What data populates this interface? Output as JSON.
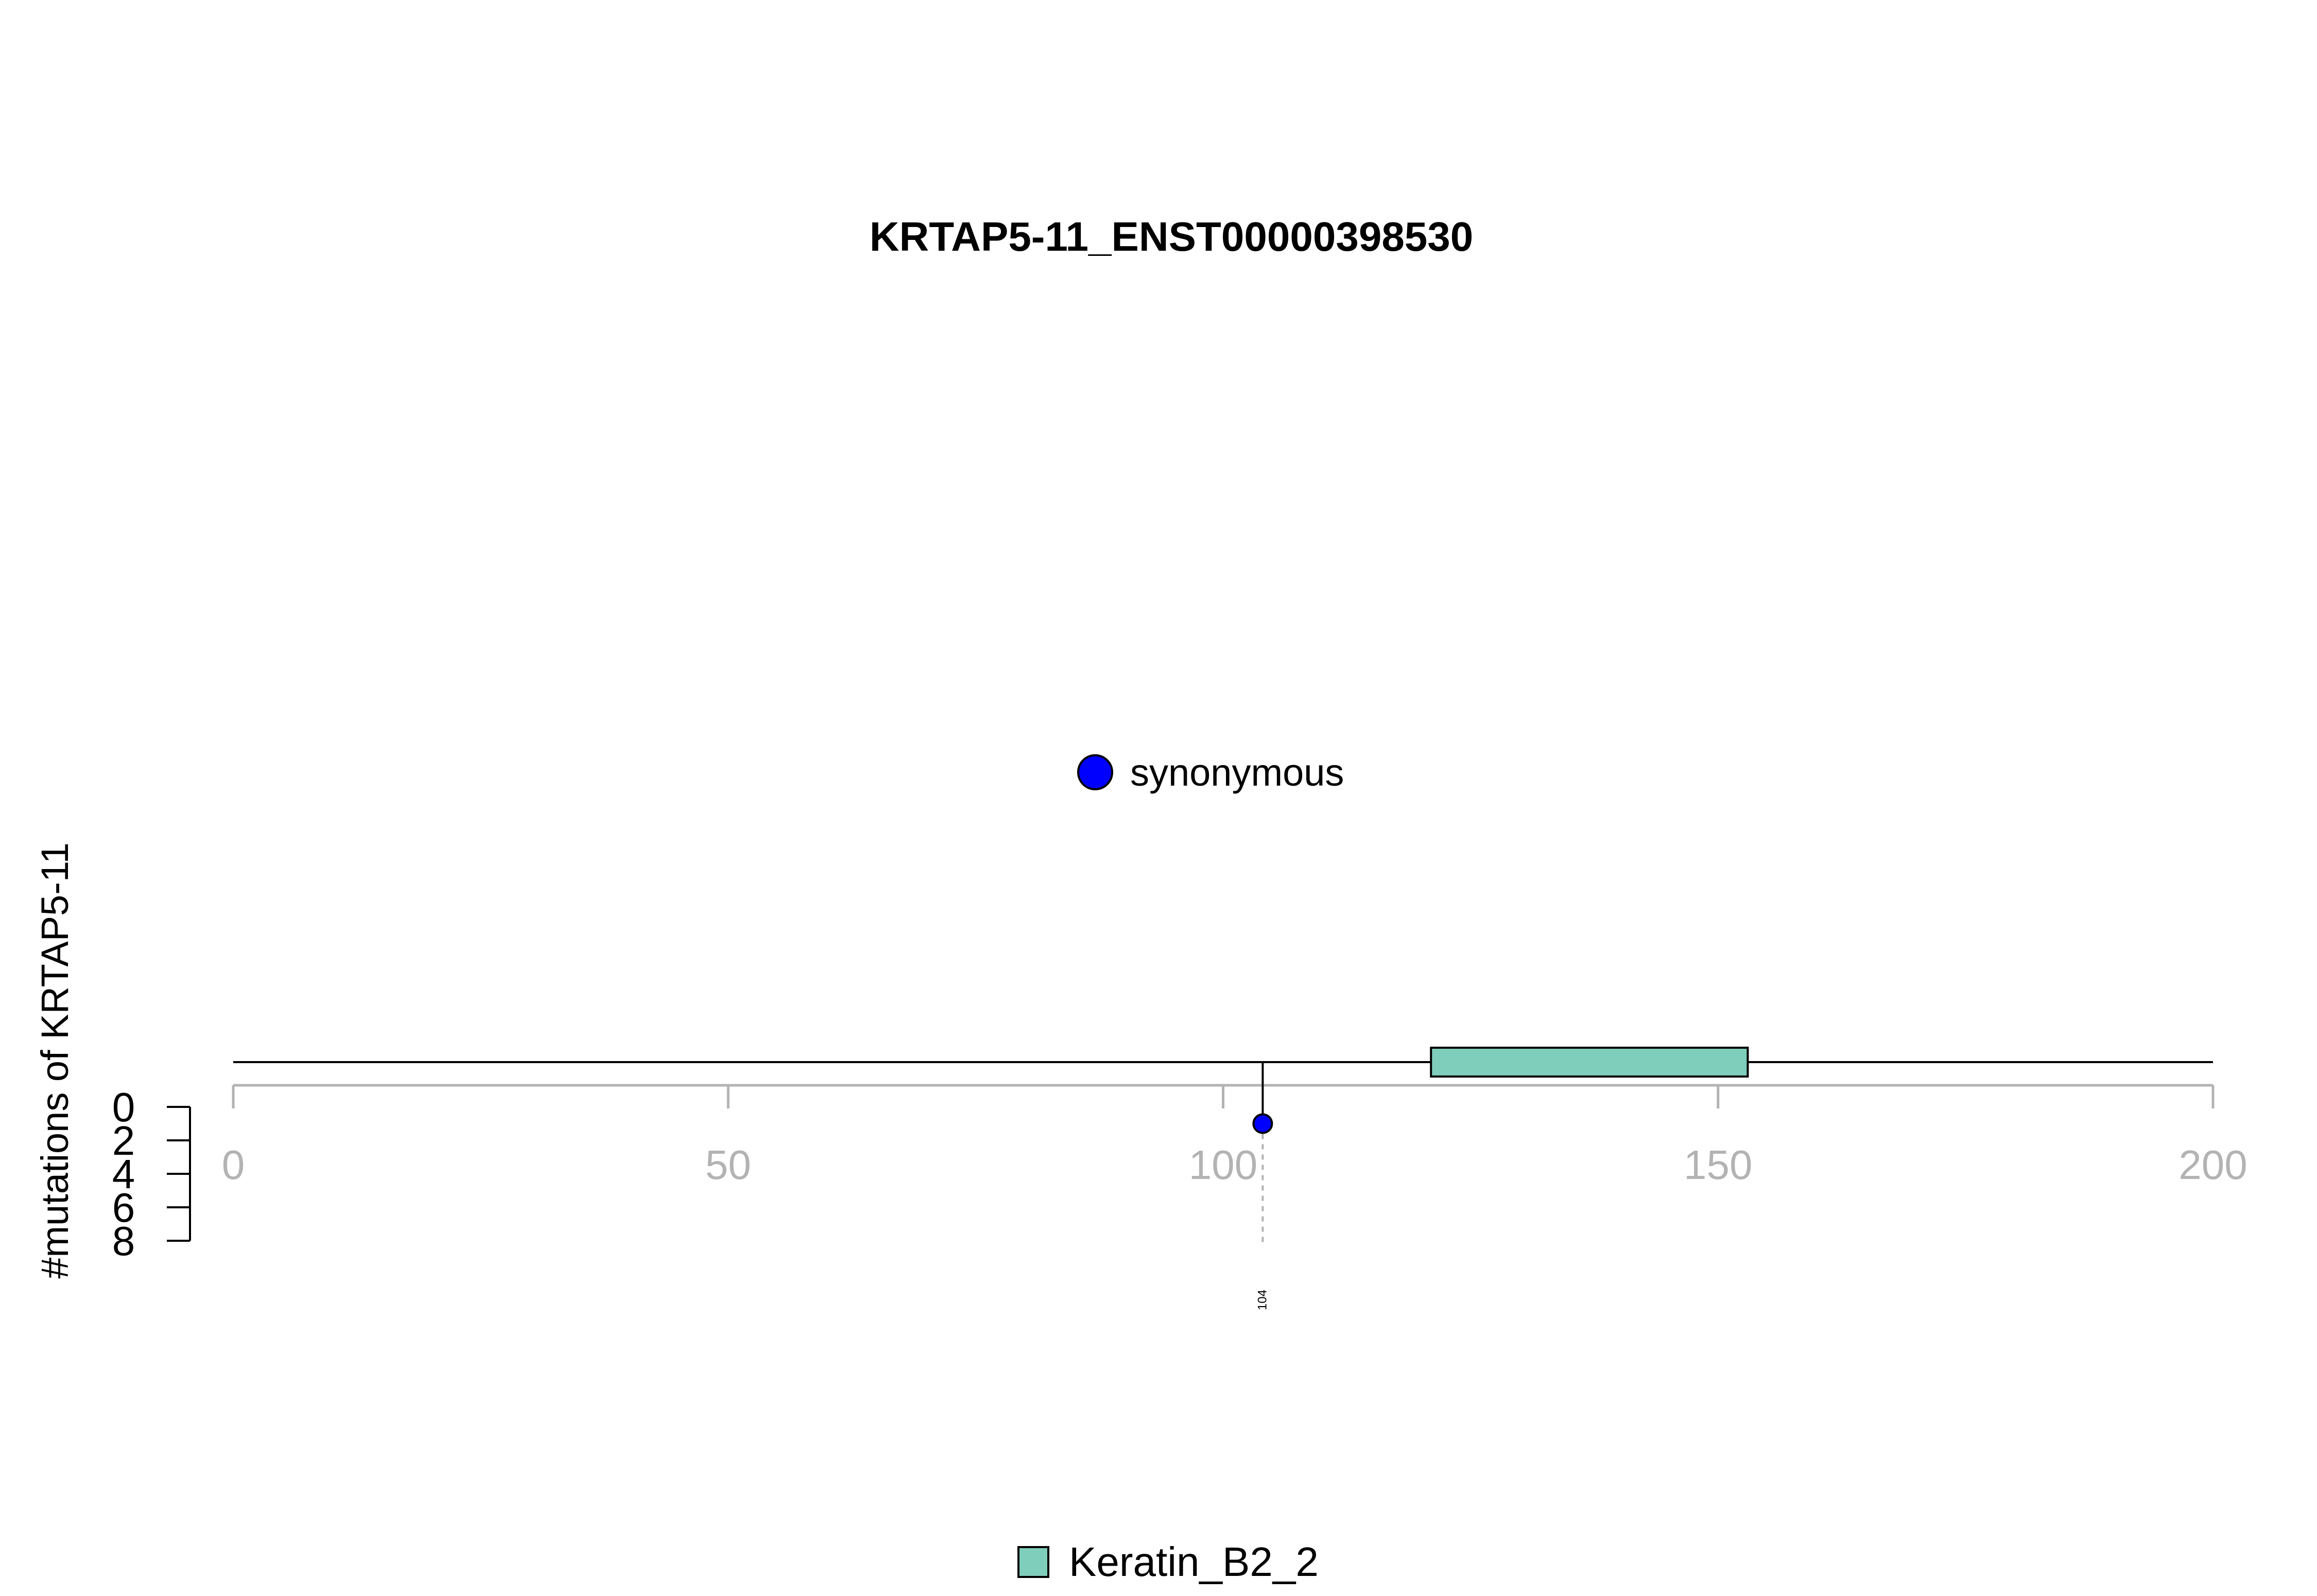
{
  "chart_data": {
    "type": "lollipop",
    "title": "KRTAP5-11_ENST00000398530",
    "ylabel": "#mutations of KRTAP5-11",
    "xlim": [
      0,
      200
    ],
    "x_ticks": [
      "0",
      "50",
      "100",
      "150",
      "200"
    ],
    "y_ticks": [
      "0",
      "2",
      "4",
      "6",
      "8"
    ],
    "ylim": [
      0,
      8
    ],
    "protein_length": 200,
    "domains": [
      {
        "name": "Keratin_B2_2",
        "start": 121,
        "end": 153,
        "color": "#7fcdbb"
      }
    ],
    "mutation_legend": [
      {
        "label": "synonymous",
        "color": "#0000ff"
      }
    ],
    "mutations": [
      {
        "position": 104,
        "label": "104",
        "count": 1,
        "type": "synonymous",
        "color": "#0000ff"
      }
    ]
  }
}
